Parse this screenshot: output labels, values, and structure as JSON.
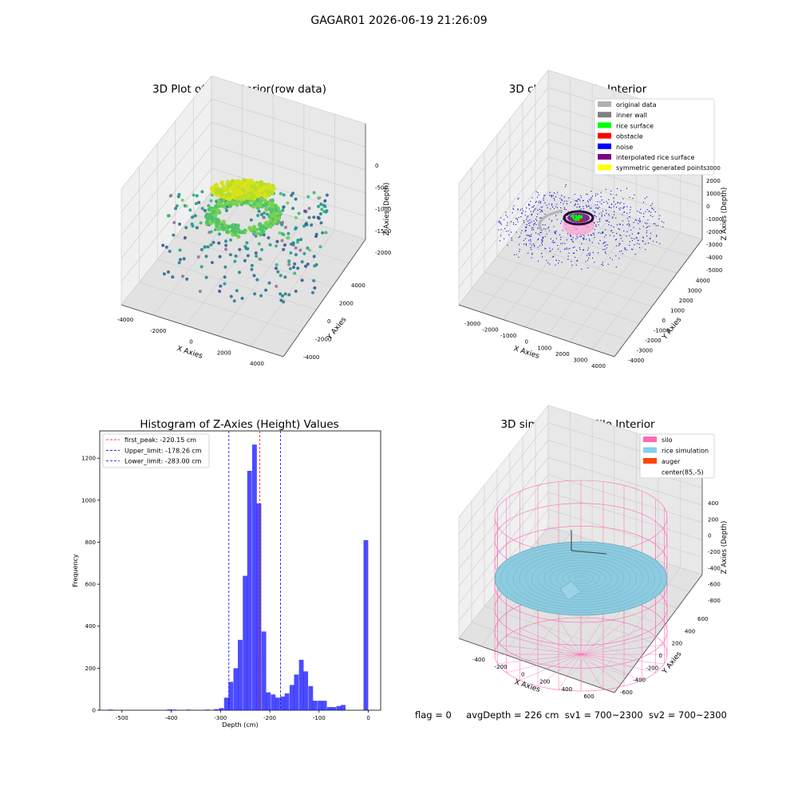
{
  "figure_title": "GAGAR01 2026-06-19 21:26:09",
  "footer": {
    "flag": "flag = 0",
    "avg_depth": "avgDepth = 226 cm",
    "sv1": "sv1 = 700~2300",
    "sv2": "sv2 = 700~2300"
  },
  "chart_data": [
    {
      "type": "scatter",
      "title": "3D Plot of Silo Interior(row data)",
      "xlabel": "X Axies",
      "ylabel": "Y Axies",
      "zlabel": "Z Axies (Depth)",
      "x_ticks": [
        "-4000",
        "-2000",
        "0",
        "2000",
        "4000"
      ],
      "y_ticks": [
        "4000",
        "2000",
        "0",
        "-2000",
        "-4000"
      ],
      "z_ticks": [
        "0",
        "-500",
        "-1000",
        "-1500",
        "-2000"
      ],
      "xlim": [
        -4500,
        4500
      ],
      "ylim": [
        -4500,
        4500
      ],
      "zlim": [
        -2400,
        0
      ]
    },
    {
      "type": "scatter",
      "title": "3D classify of Silo Interior",
      "xlabel": "X Axies",
      "ylabel": "Y Axies",
      "zlabel": "Z Axies (Depth)",
      "x_ticks": [
        "-3000",
        "-2000",
        "-1000",
        "0",
        "1000",
        "2000",
        "3000",
        "4000"
      ],
      "y_ticks": [
        "4000",
        "3000",
        "2000",
        "1000",
        "0",
        "-1000",
        "-2000",
        "-3000",
        "-4000"
      ],
      "z_ticks": [
        "3000",
        "2000",
        "1000",
        "0",
        "-1000",
        "-2000",
        "-3000",
        "-4000",
        "-5000"
      ],
      "legend_position": "top-right",
      "legend": [
        {
          "label": "original data",
          "color": "#b0b0b0"
        },
        {
          "label": "inner wall",
          "color": "#808080"
        },
        {
          "label": "rice surface",
          "color": "#00ff00"
        },
        {
          "label": "obstacle",
          "color": "#ff0000"
        },
        {
          "label": "noise",
          "color": "#0000ff"
        },
        {
          "label": "interpolated rice surface",
          "color": "#800080"
        },
        {
          "label": "symmetric generated points",
          "color": "#ffff00"
        }
      ]
    },
    {
      "type": "bar",
      "title": "Histogram of Z-Axies (Height) Values",
      "xlabel": "Depth (cm)",
      "ylabel": "Frequency",
      "xlim": [
        -545,
        25
      ],
      "ylim": [
        0,
        1330
      ],
      "x_ticks": [
        -500,
        -400,
        -300,
        -200,
        -100,
        0
      ],
      "y_ticks": [
        0,
        200,
        400,
        600,
        800,
        1000,
        1200
      ],
      "bar_color": "#0000ff",
      "bin_width": 9.5,
      "bars": [
        {
          "x": -523,
          "value": 3
        },
        {
          "x": -403,
          "value": 4
        },
        {
          "x": -394,
          "value": 3
        },
        {
          "x": -365,
          "value": 3
        },
        {
          "x": -327,
          "value": 3
        },
        {
          "x": -308,
          "value": 5
        },
        {
          "x": -298,
          "value": 10
        },
        {
          "x": -288,
          "value": 60
        },
        {
          "x": -279,
          "value": 135
        },
        {
          "x": -269,
          "value": 200
        },
        {
          "x": -260,
          "value": 335
        },
        {
          "x": -250,
          "value": 640
        },
        {
          "x": -241,
          "value": 1140
        },
        {
          "x": -231,
          "value": 1265
        },
        {
          "x": -222,
          "value": 985
        },
        {
          "x": -212,
          "value": 375
        },
        {
          "x": -203,
          "value": 85
        },
        {
          "x": -193,
          "value": 75
        },
        {
          "x": -184,
          "value": 60
        },
        {
          "x": -174,
          "value": 65
        },
        {
          "x": -165,
          "value": 80
        },
        {
          "x": -155,
          "value": 120
        },
        {
          "x": -146,
          "value": 170
        },
        {
          "x": -136,
          "value": 240
        },
        {
          "x": -127,
          "value": 185
        },
        {
          "x": -117,
          "value": 115
        },
        {
          "x": -108,
          "value": 45
        },
        {
          "x": -98,
          "value": 45
        },
        {
          "x": -89,
          "value": 45
        },
        {
          "x": -79,
          "value": 15
        },
        {
          "x": -70,
          "value": 15
        },
        {
          "x": -60,
          "value": 20
        },
        {
          "x": -51,
          "value": 25
        },
        {
          "x": -5,
          "value": 810
        }
      ],
      "lines": [
        {
          "label": "first_peak: -220.15 cm",
          "x": -220.15,
          "color": "#ff0000"
        },
        {
          "label": "Upper_limit: -178.26 cm",
          "x": -178.26,
          "color": "#0000ff"
        },
        {
          "label": "Lower_limit: -283.00 cm",
          "x": -283.0,
          "color": "#0000ff"
        }
      ],
      "legend_position": "top-left"
    },
    {
      "type": "scatter",
      "title": "3D simulation of Silo Interior",
      "xlabel": "X Axies",
      "ylabel": "Y Axies",
      "zlabel": "Z Axies (Depth)",
      "x_ticks": [
        "-400",
        "-200",
        "0",
        "200",
        "400",
        "600"
      ],
      "y_ticks": [
        "600",
        "400",
        "200",
        "0",
        "-200",
        "-400",
        "-600"
      ],
      "z_ticks": [
        "400",
        "200",
        "0",
        "-200",
        "-400",
        "-600",
        "-800"
      ],
      "legend_position": "top-right",
      "legend": [
        {
          "label": "silo",
          "color": "#ff69b4"
        },
        {
          "label": "rice simulation",
          "color": "#87ceeb"
        },
        {
          "label": "auger",
          "color": "#ff4500"
        },
        {
          "label": "center(85,-5)",
          "color": "#ffffff"
        }
      ]
    }
  ]
}
